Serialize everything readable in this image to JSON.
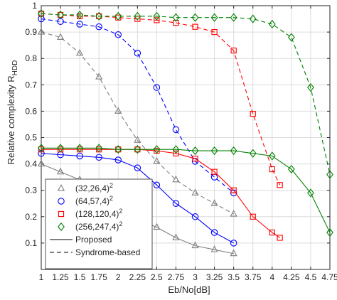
{
  "chart_data": {
    "type": "line",
    "xlabel": "Eb/No[dB]",
    "ylabel_main": "Relative complexity R",
    "ylabel_sub": "HDD",
    "xlim": [
      1,
      4.75
    ],
    "ylim": [
      0,
      1
    ],
    "grid": true,
    "legend_position": "bottom-left",
    "x_ticks": [
      1,
      1.25,
      1.5,
      1.75,
      2,
      2.25,
      2.5,
      2.75,
      3,
      3.25,
      3.5,
      3.75,
      4,
      4.25,
      4.5,
      4.75
    ],
    "y_ticks": [
      0.1,
      0.2,
      0.3,
      0.4,
      0.5,
      0.6,
      0.7,
      0.8,
      0.9,
      1
    ],
    "series": [
      {
        "name": "(32,26,4)",
        "name_sup": "2",
        "color": "#7f7f7f",
        "marker": "triangle",
        "proposed": {
          "x": [
            1,
            1.25,
            1.5,
            1.75,
            2,
            2.25,
            2.5,
            2.75,
            3,
            3.25,
            3.5
          ],
          "y": [
            0.4,
            0.37,
            0.34,
            0.31,
            0.24,
            0.19,
            0.16,
            0.12,
            0.09,
            0.075,
            0.06
          ]
        },
        "syndrome_based": {
          "x": [
            1,
            1.25,
            1.5,
            1.75,
            2,
            2.25,
            2.5,
            2.75,
            3,
            3.25,
            3.5
          ],
          "y": [
            0.9,
            0.88,
            0.82,
            0.73,
            0.6,
            0.49,
            0.41,
            0.34,
            0.29,
            0.25,
            0.21
          ]
        }
      },
      {
        "name": "(64,57,4)",
        "name_sup": "2",
        "color": "#0000ff",
        "marker": "circle",
        "proposed": {
          "x": [
            1,
            1.25,
            1.5,
            1.75,
            2,
            2.25,
            2.5,
            2.75,
            3,
            3.25,
            3.5
          ],
          "y": [
            0.44,
            0.435,
            0.43,
            0.425,
            0.415,
            0.385,
            0.32,
            0.25,
            0.2,
            0.14,
            0.1
          ]
        },
        "syndrome_based": {
          "x": [
            1,
            1.25,
            1.5,
            1.75,
            2,
            2.25,
            2.5,
            2.75,
            3,
            3.25,
            3.5
          ],
          "y": [
            0.95,
            0.94,
            0.93,
            0.92,
            0.89,
            0.82,
            0.69,
            0.53,
            0.41,
            0.35,
            0.29
          ]
        }
      },
      {
        "name": "(128,120,4)",
        "name_sup": "2",
        "color": "#ff0000",
        "marker": "square",
        "proposed": {
          "x": [
            1,
            1.25,
            1.5,
            1.75,
            2,
            2.25,
            2.5,
            2.75,
            3,
            3.25,
            3.5,
            3.75,
            4,
            4.1
          ],
          "y": [
            0.455,
            0.455,
            0.455,
            0.455,
            0.455,
            0.455,
            0.45,
            0.44,
            0.42,
            0.37,
            0.3,
            0.2,
            0.14,
            0.12
          ]
        },
        "syndrome_based": {
          "x": [
            1,
            1.25,
            1.5,
            1.75,
            2,
            2.25,
            2.5,
            2.75,
            3,
            3.25,
            3.5,
            3.75,
            4,
            4.1
          ],
          "y": [
            0.97,
            0.965,
            0.96,
            0.96,
            0.955,
            0.95,
            0.945,
            0.935,
            0.92,
            0.9,
            0.83,
            0.59,
            0.38,
            0.32
          ]
        }
      },
      {
        "name": "(256,247,4)",
        "name_sup": "2",
        "color": "#008000",
        "marker": "diamond",
        "proposed": {
          "x": [
            1,
            1.25,
            1.5,
            1.75,
            2,
            2.25,
            2.5,
            2.75,
            3,
            3.25,
            3.5,
            3.75,
            4,
            4.25,
            4.5,
            4.75
          ],
          "y": [
            0.46,
            0.46,
            0.46,
            0.46,
            0.455,
            0.455,
            0.455,
            0.455,
            0.45,
            0.45,
            0.45,
            0.44,
            0.43,
            0.38,
            0.29,
            0.14
          ]
        },
        "syndrome_based": {
          "x": [
            1,
            1.25,
            1.5,
            1.75,
            2,
            2.25,
            2.5,
            2.75,
            3,
            3.25,
            3.5,
            3.75,
            4,
            4.25,
            4.5,
            4.75
          ],
          "y": [
            0.97,
            0.965,
            0.965,
            0.96,
            0.96,
            0.96,
            0.96,
            0.955,
            0.955,
            0.955,
            0.955,
            0.95,
            0.93,
            0.88,
            0.69,
            0.36
          ]
        }
      }
    ],
    "line_styles": [
      {
        "name": "Proposed",
        "dash": "solid"
      },
      {
        "name": "Syndrome-based",
        "dash": "dashed"
      }
    ]
  }
}
